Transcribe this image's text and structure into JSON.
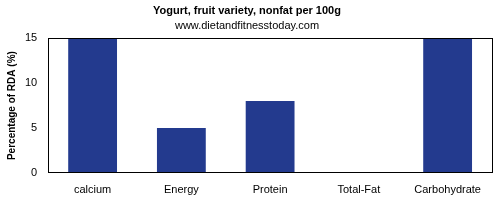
{
  "chart_data": {
    "type": "bar",
    "title": "Yogurt, fruit variety, nonfat per 100g",
    "subtitle": "www.dietandfitnesstoday.com",
    "y_label": "Percentage of RDA (%)",
    "categories": [
      "calcium",
      "Energy",
      "Protein",
      "Total-Fat",
      "Carbohydrate"
    ],
    "values": [
      15,
      5,
      8,
      0,
      15
    ],
    "color": "#233a8e",
    "ylim": [
      0,
      15
    ],
    "yticks": [
      0,
      5,
      10,
      15
    ],
    "grid": false
  }
}
